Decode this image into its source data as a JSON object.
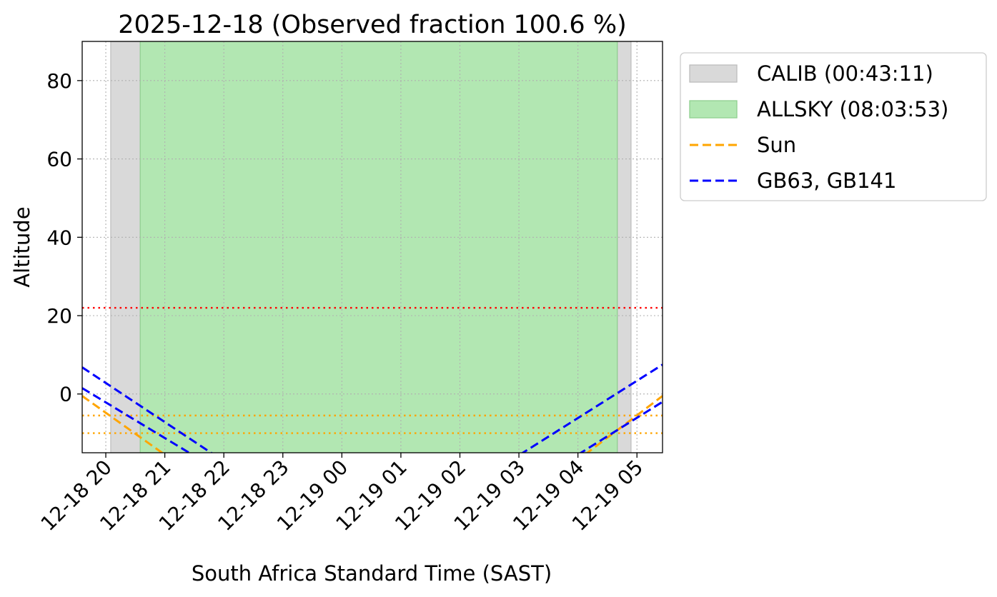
{
  "chart_data": {
    "type": "line",
    "title": "2025-12-18 (Observed fraction 100.6 %)",
    "xlabel": "South Africa Standard Time (SAST)",
    "ylabel": "Altitude",
    "xlim": [
      "2025-12-18 19:36",
      "2025-12-19 05:26"
    ],
    "ylim": [
      -15,
      90
    ],
    "x_ticks": [
      {
        "t": "2025-12-18 20:00",
        "label": "12-18 20"
      },
      {
        "t": "2025-12-18 21:00",
        "label": "12-18 21"
      },
      {
        "t": "2025-12-18 22:00",
        "label": "12-18 22"
      },
      {
        "t": "2025-12-18 23:00",
        "label": "12-18 23"
      },
      {
        "t": "2025-12-19 00:00",
        "label": "12-19 00"
      },
      {
        "t": "2025-12-19 01:00",
        "label": "12-19 01"
      },
      {
        "t": "2025-12-19 02:00",
        "label": "12-19 02"
      },
      {
        "t": "2025-12-19 03:00",
        "label": "12-19 03"
      },
      {
        "t": "2025-12-19 04:00",
        "label": "12-19 04"
      },
      {
        "t": "2025-12-19 05:00",
        "label": "12-19 05"
      }
    ],
    "y_ticks": [
      0,
      20,
      40,
      60,
      80
    ],
    "grid": true,
    "legend_position": "outside-top-right",
    "bands": [
      {
        "name": "CALIB (00:43:11)",
        "color": "#d9d9d9",
        "edge": "#bdbdbd",
        "ranges": [
          [
            "2025-12-18 20:05",
            "2025-12-18 20:35"
          ],
          [
            "2025-12-19 04:40",
            "2025-12-19 04:54"
          ]
        ]
      },
      {
        "name": "ALLSKY (08:03:53)",
        "color": "#b2e7b2",
        "edge": "#8fcf8f",
        "ranges": [
          [
            "2025-12-18 20:35",
            "2025-12-19 04:40"
          ]
        ]
      }
    ],
    "series": [
      {
        "name": "Sun",
        "color": "#ffa500",
        "dash": "12,6",
        "legend": true,
        "segments": [
          [
            [
              "2025-12-18 19:36",
              -0.5
            ],
            [
              "2025-12-18 21:00",
              -15.5
            ]
          ],
          [
            [
              "2025-12-19 04:07",
              -15.5
            ],
            [
              "2025-12-19 05:26",
              -0.5
            ]
          ]
        ]
      },
      {
        "name": "GB63, GB141",
        "color": "#0000ff",
        "dash": "12,6",
        "legend": true,
        "segments": [
          [
            [
              "2025-12-18 19:36",
              6.8
            ],
            [
              "2025-12-18 21:50",
              -15.5
            ]
          ],
          [
            [
              "2025-12-19 03:01",
              -15.5
            ],
            [
              "2025-12-19 05:26",
              7.5
            ]
          ]
        ]
      },
      {
        "name": "GB63, GB141 (2)",
        "color": "#0000ff",
        "dash": "12,6",
        "legend": false,
        "segments": [
          [
            [
              "2025-12-18 19:36",
              1.5
            ],
            [
              "2025-12-18 21:28",
              -15.5
            ]
          ],
          [
            [
              "2025-12-19 04:00",
              -15.5
            ],
            [
              "2025-12-19 05:26",
              -2.0
            ]
          ]
        ]
      }
    ],
    "hlines": [
      {
        "y": 22,
        "color": "#ff0000",
        "dash": "2.5,5"
      },
      {
        "y": -5.5,
        "color": "#ffa500",
        "dash": "2.5,5"
      },
      {
        "y": -10,
        "color": "#ffa500",
        "dash": "2.5,5"
      }
    ]
  }
}
